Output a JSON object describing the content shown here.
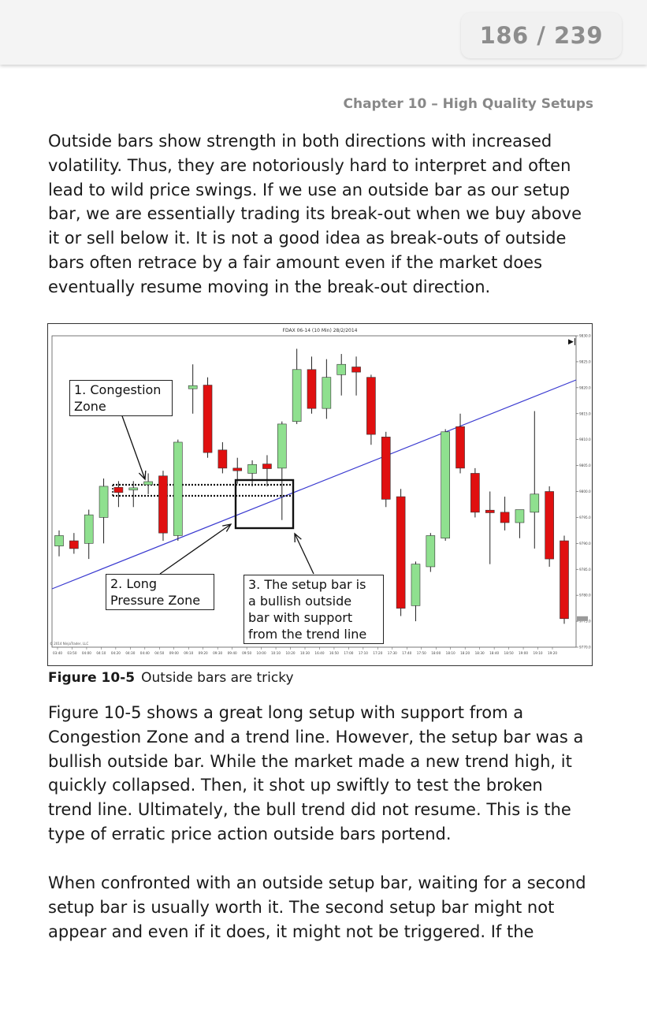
{
  "header": {
    "page_counter": "186 / 239"
  },
  "chapter_title": "Chapter 10 – High Quality Setups",
  "paragraphs": {
    "p1": [
      "Outside bars show strength in both directions with increased",
      "volatility. Thus, they are notoriously hard to interpret and often",
      "lead to wild price swings. If we use an outside bar as our setup",
      "bar, we are essentially trading its break-out when we buy above",
      "it or sell below it. It is not a good idea as break-outs of outside",
      "bars often retrace by a fair amount even if the market does",
      "eventually resume moving in the break-out direction."
    ],
    "p2": [
      "Figure 10-5 shows a great long setup with support from a",
      "Congestion Zone and a trend line. However, the setup bar was a",
      "bullish outside bar. While the market made a new trend high, it",
      "quickly collapsed. Then, it shot up swiftly to test the broken",
      "trend line. Ultimately, the bull trend did not resume. This is the",
      "type of erratic price action outside bars portend."
    ],
    "p3": [
      "When confronted with an outside setup bar, waiting for a second",
      "setup bar is usually worth it. The second setup bar might not",
      "appear and even if it does, it might not be triggered. If the"
    ]
  },
  "figure": {
    "caption_label": "Figure 10-5",
    "caption_text": "Outside bars are tricky",
    "chart_title": "FDAX 06-14 (10 Min)  28/2/2014",
    "copyright": "© 2014 NinjaTrader, LLC",
    "annotations": {
      "a1": [
        "1. Congestion",
        "Zone"
      ],
      "a2": [
        "2. Long",
        "Pressure Zone"
      ],
      "a3": [
        "3. The setup bar is",
        "a bullish outside",
        "bar with support",
        "from the trend line"
      ]
    },
    "colors": {
      "bull": "#8fe08f",
      "bear": "#e01010",
      "trend_line": "#3a3ad0",
      "wick": "#222222"
    }
  },
  "chart_data": {
    "type": "candlestick",
    "title": "FDAX 06-14 (10 Min)  28/2/2014",
    "y_ticks": [
      "9830.0",
      "9825.0",
      "9820.0",
      "9815.0",
      "9810.0",
      "9805.0",
      "9800.0",
      "9795.0",
      "9790.0",
      "9785.0",
      "9780.0",
      "9775.0",
      "9770.0"
    ],
    "ylim": [
      9770,
      9830
    ],
    "x_ticks": [
      "03:40",
      "03:50",
      "04:00",
      "04:10",
      "04:20",
      "04:30",
      "04:40",
      "04:50",
      "09:00",
      "09:10",
      "09:20",
      "09:30",
      "09:40",
      "09:50",
      "10:00",
      "10:10",
      "10:20",
      "10:30",
      "16:40",
      "16:50",
      "17:00",
      "17:10",
      "17:20",
      "17:30",
      "17:40",
      "17:50",
      "18:00",
      "18:10",
      "18:20",
      "18:30",
      "18:40",
      "18:50",
      "19:00",
      "19:10",
      "19:20"
    ],
    "bars": [
      {
        "o": 9789.5,
        "h": 9792.5,
        "l": 9787.5,
        "c": 9791.5,
        "dir": "up"
      },
      {
        "o": 9790.5,
        "h": 9792.0,
        "l": 9788.0,
        "c": 9789.0,
        "dir": "down"
      },
      {
        "o": 9790.0,
        "h": 9796.5,
        "l": 9787.0,
        "c": 9795.5,
        "dir": "up"
      },
      {
        "o": 9795.0,
        "h": 9802.5,
        "l": 9790.0,
        "c": 9801.0,
        "dir": "up"
      },
      {
        "o": 9800.8,
        "h": 9802.0,
        "l": 9797.0,
        "c": 9799.8,
        "dir": "down"
      },
      {
        "o": 9800.3,
        "h": 9802.0,
        "l": 9797.0,
        "c": 9800.7,
        "dir": "up"
      },
      {
        "o": 9801.3,
        "h": 9803.5,
        "l": 9799.5,
        "c": 9801.9,
        "dir": "up"
      },
      {
        "o": 9803.0,
        "h": 9804.0,
        "l": 9790.5,
        "c": 9792.0,
        "dir": "down"
      },
      {
        "o": 9791.5,
        "h": 9810.0,
        "l": 9790.5,
        "c": 9809.5,
        "dir": "up"
      },
      {
        "o": 9819.8,
        "h": 9824.5,
        "l": 9815.0,
        "c": 9820.4,
        "dir": "up"
      },
      {
        "o": 9820.5,
        "h": 9822.0,
        "l": 9806.5,
        "c": 9807.5,
        "dir": "down"
      },
      {
        "o": 9808.0,
        "h": 9809.5,
        "l": 9803.5,
        "c": 9804.5,
        "dir": "down"
      },
      {
        "o": 9804.5,
        "h": 9806.5,
        "l": 9801.5,
        "c": 9804.0,
        "dir": "down"
      },
      {
        "o": 9803.5,
        "h": 9806.0,
        "l": 9801.0,
        "c": 9805.2,
        "dir": "up"
      },
      {
        "o": 9805.3,
        "h": 9807.0,
        "l": 9801.0,
        "c": 9804.4,
        "dir": "down"
      },
      {
        "o": 9804.5,
        "h": 9813.5,
        "l": 9794.5,
        "c": 9813.0,
        "dir": "up"
      },
      {
        "o": 9813.5,
        "h": 9827.5,
        "l": 9813.0,
        "c": 9823.5,
        "dir": "up"
      },
      {
        "o": 9823.5,
        "h": 9826.0,
        "l": 9815.0,
        "c": 9816.0,
        "dir": "down"
      },
      {
        "o": 9816.0,
        "h": 9825.5,
        "l": 9814.0,
        "c": 9822.0,
        "dir": "up"
      },
      {
        "o": 9822.5,
        "h": 9826.5,
        "l": 9818.5,
        "c": 9824.5,
        "dir": "up"
      },
      {
        "o": 9824.0,
        "h": 9826.0,
        "l": 9818.5,
        "c": 9823.0,
        "dir": "down"
      },
      {
        "o": 9822.0,
        "h": 9822.5,
        "l": 9809.0,
        "c": 9811.0,
        "dir": "down"
      },
      {
        "o": 9810.5,
        "h": 9811.5,
        "l": 9797.0,
        "c": 9798.5,
        "dir": "down"
      },
      {
        "o": 9799.0,
        "h": 9800.5,
        "l": 9776.0,
        "c": 9777.5,
        "dir": "down"
      },
      {
        "o": 9778.0,
        "h": 9786.5,
        "l": 9775.0,
        "c": 9786.0,
        "dir": "up"
      },
      {
        "o": 9785.5,
        "h": 9792.0,
        "l": 9784.5,
        "c": 9791.5,
        "dir": "up"
      },
      {
        "o": 9791.0,
        "h": 9812.0,
        "l": 9790.5,
        "c": 9811.5,
        "dir": "up"
      },
      {
        "o": 9812.5,
        "h": 9815.0,
        "l": 9803.5,
        "c": 9804.5,
        "dir": "down"
      },
      {
        "o": 9803.5,
        "h": 9804.5,
        "l": 9795.0,
        "c": 9796.0,
        "dir": "down"
      },
      {
        "o": 9796.4,
        "h": 9800.0,
        "l": 9786.0,
        "c": 9795.9,
        "dir": "down"
      },
      {
        "o": 9796.0,
        "h": 9799.0,
        "l": 9792.5,
        "c": 9794.0,
        "dir": "down"
      },
      {
        "o": 9794.0,
        "h": 9796.5,
        "l": 9791.0,
        "c": 9796.5,
        "dir": "up"
      },
      {
        "o": 9796.0,
        "h": 9815.5,
        "l": 9789.0,
        "c": 9799.5,
        "dir": "up"
      },
      {
        "o": 9800.0,
        "h": 9801.0,
        "l": 9785.5,
        "c": 9787.0,
        "dir": "down"
      },
      {
        "o": 9790.5,
        "h": 9791.5,
        "l": 9774.5,
        "c": 9775.5,
        "dir": "down"
      }
    ]
  }
}
